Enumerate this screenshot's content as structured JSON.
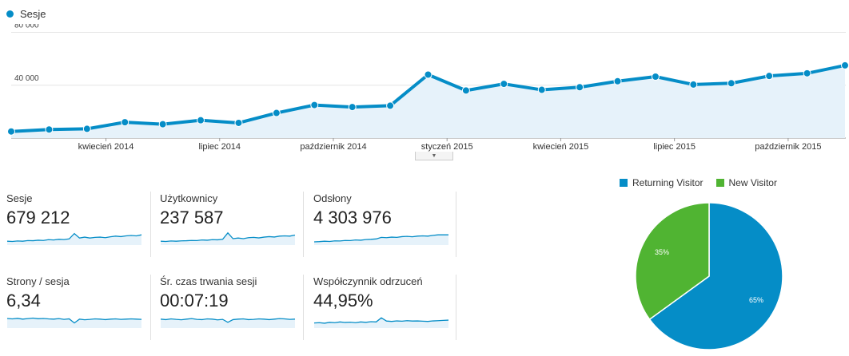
{
  "main_chart": {
    "legend_label": "Sesje",
    "color": "#058dc7",
    "fill": "#e6f2fa"
  },
  "metrics": [
    {
      "label": "Sesje",
      "value": "679 212"
    },
    {
      "label": "Użytkownicy",
      "value": "237 587"
    },
    {
      "label": "Odsłony",
      "value": "4 303 976"
    },
    {
      "label": "Strony / sesja",
      "value": "6,34"
    },
    {
      "label": "Śr. czas trwania sesji",
      "value": "00:07:19"
    },
    {
      "label": "Współczynnik odrzuceń",
      "value": "44,95%"
    }
  ],
  "pie_legend": {
    "returning": "Returning Visitor",
    "new": "New Visitor"
  },
  "chart_data": [
    {
      "type": "line",
      "series": [
        {
          "name": "Sesje",
          "color": "#058dc7",
          "values": [
            5000,
            6500,
            7000,
            12000,
            10500,
            13500,
            11500,
            19000,
            25000,
            23500,
            24500,
            48000,
            36000,
            41000,
            36500,
            38500,
            43000,
            46500,
            40500,
            41500,
            47000,
            49000,
            55000
          ]
        }
      ],
      "x_tick_labels": [
        "kwiecień 2014",
        "lipiec 2014",
        "październik 2014",
        "styczeń 2015",
        "kwiecień 2015",
        "lipiec 2015",
        "październik 2015"
      ],
      "x_tick_after_point": [
        2,
        5,
        8,
        11,
        14,
        17,
        20
      ],
      "y_ticks": [
        {
          "value": 80000,
          "label": "80 000"
        },
        {
          "value": 40000,
          "label": "40 000"
        }
      ],
      "ylim": [
        0,
        80000
      ],
      "grid": true
    },
    {
      "type": "pie",
      "labels": [
        "Returning Visitor",
        "New Visitor"
      ],
      "values": [
        65,
        35
      ],
      "slice_labels": [
        "65%",
        "35%"
      ],
      "colors": [
        "#058dc7",
        "#50b432"
      ],
      "legend": "top"
    }
  ],
  "sparklines": [
    [
      0.3,
      0.28,
      0.32,
      0.3,
      0.35,
      0.34,
      0.38,
      0.36,
      0.42,
      0.4,
      0.45,
      0.43,
      0.48,
      0.9,
      0.55,
      0.62,
      0.55,
      0.6,
      0.62,
      0.58,
      0.65,
      0.7,
      0.66,
      0.72,
      0.75,
      0.72,
      0.8
    ],
    [
      0.3,
      0.28,
      0.32,
      0.3,
      0.33,
      0.34,
      0.36,
      0.35,
      0.4,
      0.38,
      0.42,
      0.41,
      0.45,
      0.95,
      0.5,
      0.55,
      0.5,
      0.58,
      0.6,
      0.56,
      0.62,
      0.66,
      0.63,
      0.7,
      0.72,
      0.7,
      0.78
    ],
    [
      0.25,
      0.27,
      0.3,
      0.28,
      0.33,
      0.32,
      0.36,
      0.35,
      0.4,
      0.38,
      0.43,
      0.45,
      0.48,
      0.6,
      0.58,
      0.62,
      0.6,
      0.66,
      0.68,
      0.65,
      0.7,
      0.72,
      0.7,
      0.76,
      0.8,
      0.8,
      0.8
    ],
    [
      0.75,
      0.72,
      0.76,
      0.7,
      0.74,
      0.78,
      0.73,
      0.75,
      0.72,
      0.7,
      0.74,
      0.68,
      0.72,
      0.4,
      0.7,
      0.65,
      0.68,
      0.72,
      0.7,
      0.66,
      0.7,
      0.72,
      0.68,
      0.7,
      0.72,
      0.7,
      0.68
    ],
    [
      0.7,
      0.66,
      0.72,
      0.68,
      0.65,
      0.7,
      0.74,
      0.68,
      0.66,
      0.72,
      0.7,
      0.64,
      0.68,
      0.45,
      0.66,
      0.7,
      0.72,
      0.66,
      0.68,
      0.72,
      0.7,
      0.66,
      0.7,
      0.74,
      0.72,
      0.68,
      0.7
    ],
    [
      0.4,
      0.42,
      0.38,
      0.45,
      0.42,
      0.48,
      0.44,
      0.46,
      0.42,
      0.48,
      0.45,
      0.5,
      0.48,
      0.8,
      0.55,
      0.52,
      0.56,
      0.54,
      0.58,
      0.55,
      0.56,
      0.54,
      0.52,
      0.56,
      0.58,
      0.6,
      0.62
    ]
  ]
}
